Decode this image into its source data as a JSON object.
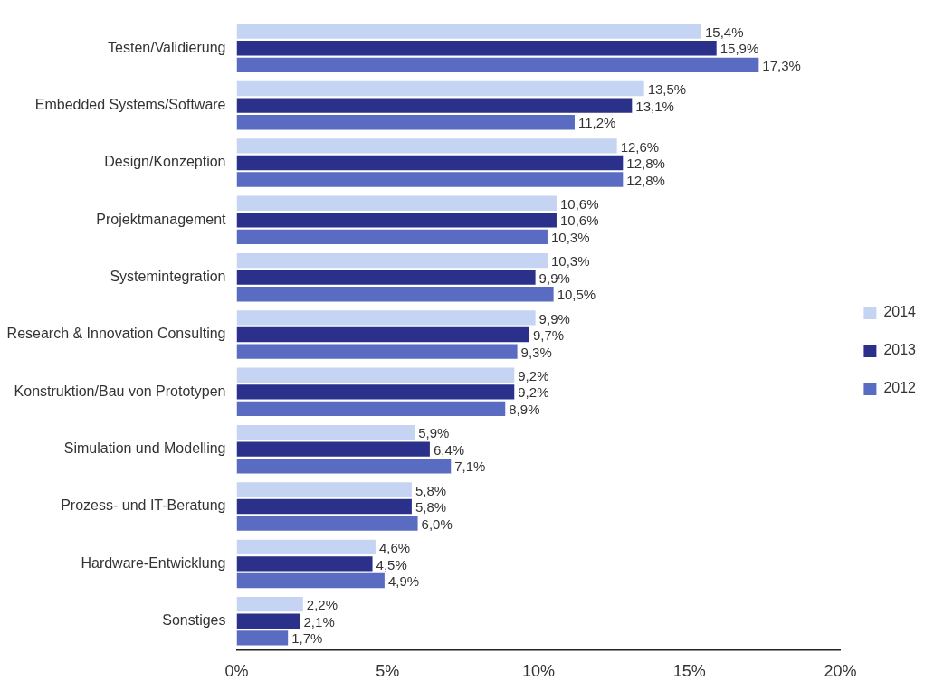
{
  "chart_data": {
    "type": "bar",
    "orientation": "horizontal",
    "categories": [
      "Testen/Validierung",
      "Embedded Systems/Software",
      "Design/Konzeption",
      "Projektmanagement",
      "Systemintegration",
      "Research & Innovation Consulting",
      "Konstruktion/Bau von Prototypen",
      "Simulation und Modelling",
      "Prozess- und IT-Beratung",
      "Hardware-Entwicklung",
      "Sonstiges"
    ],
    "series": [
      {
        "name": "2014",
        "color": "#c5d4f2",
        "values": [
          15.4,
          13.5,
          12.6,
          10.6,
          10.3,
          9.9,
          9.2,
          5.9,
          5.8,
          4.6,
          2.2
        ],
        "value_labels": [
          "15,4%",
          "13,5%",
          "12,6%",
          "10,6%",
          "10,3%",
          "9,9%",
          "9,2%",
          "5,9%",
          "5,8%",
          "4,6%",
          "2,2%"
        ]
      },
      {
        "name": "2013",
        "color": "#2b318a",
        "values": [
          15.9,
          13.1,
          12.8,
          10.6,
          9.9,
          9.7,
          9.2,
          6.4,
          5.8,
          4.5,
          2.1
        ],
        "value_labels": [
          "15,9%",
          "13,1%",
          "12,8%",
          "10,6%",
          "9,9%",
          "9,7%",
          "9,2%",
          "6,4%",
          "5,8%",
          "4,5%",
          "2,1%"
        ]
      },
      {
        "name": "2012",
        "color": "#5a6cc2",
        "values": [
          17.3,
          11.2,
          12.8,
          10.3,
          10.5,
          9.3,
          8.9,
          7.1,
          6.0,
          4.9,
          1.7
        ],
        "value_labels": [
          "17,3%",
          "11,2%",
          "12,8%",
          "10,3%",
          "10,5%",
          "9,3%",
          "8,9%",
          "7,1%",
          "6,0%",
          "4,9%",
          "1,7%"
        ]
      }
    ],
    "xlim": [
      0,
      20
    ],
    "xticks": [
      {
        "value": 0,
        "label": "0%"
      },
      {
        "value": 5,
        "label": "5%"
      },
      {
        "value": 10,
        "label": "10%"
      },
      {
        "value": 15,
        "label": "15%"
      },
      {
        "value": 20,
        "label": "20%"
      }
    ],
    "grid": false,
    "legend": "right"
  }
}
